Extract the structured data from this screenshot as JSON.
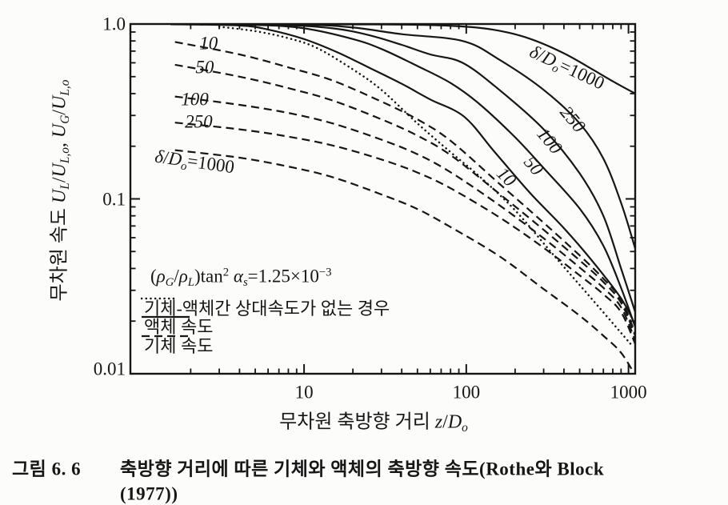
{
  "page": {
    "background": "#fcfcfa",
    "ink": "#161616"
  },
  "chart_data": {
    "type": "line",
    "x_scale": "log",
    "y_scale": "log",
    "xlim": [
      0.85,
      1100
    ],
    "ylim": [
      0.01,
      1.0
    ],
    "grid": false,
    "title": "",
    "xlabel": "무차원 축방향 거리 z/Do",
    "ylabel": "무차원 속도 UL/UL,o, UG/UL,o",
    "annotation": "(ρG/ρL)tan² αs=1.25×10⁻³",
    "x_ticks": [
      10,
      100,
      1000
    ],
    "x_tick_labels": [
      "10",
      "100",
      "1000"
    ],
    "x_minor_ticks": [
      2,
      3,
      4,
      5,
      6,
      7,
      8,
      9,
      20,
      30,
      40,
      50,
      60,
      70,
      80,
      90,
      200,
      300,
      400,
      500,
      600,
      700,
      800,
      900
    ],
    "y_ticks": [
      1.0,
      0.1,
      0.01
    ],
    "y_tick_labels": [
      "1.0",
      "0.1",
      "0.01"
    ],
    "y_minor_ticks": [
      0.9,
      0.8,
      0.7,
      0.6,
      0.5,
      0.4,
      0.3,
      0.2,
      0.09,
      0.08,
      0.07,
      0.06,
      0.05,
      0.04,
      0.03,
      0.02
    ],
    "legend_position": "lower-left-inside",
    "legend": [
      {
        "style": "dotted",
        "label": "기체-액체간 상대속도가 없는 경우"
      },
      {
        "style": "solid",
        "label": "액체 속도"
      },
      {
        "style": "dashed",
        "label": "기체 속도"
      }
    ],
    "series": [
      {
        "name": "liquid-delta-1000",
        "group": "액체 속도",
        "delta_over_Do": 1000,
        "style": "solid",
        "points": [
          [
            1.5,
            0.999
          ],
          [
            20,
            0.995
          ],
          [
            50,
            0.99
          ],
          [
            100,
            0.965
          ],
          [
            160,
            0.915
          ],
          [
            250,
            0.82
          ],
          [
            400,
            0.68
          ],
          [
            600,
            0.55
          ],
          [
            800,
            0.47
          ],
          [
            1100,
            0.4
          ]
        ]
      },
      {
        "name": "liquid-delta-250",
        "group": "액체 속도",
        "delta_over_Do": 250,
        "style": "solid",
        "points": [
          [
            1.5,
            0.998
          ],
          [
            10,
            0.99
          ],
          [
            20,
            0.955
          ],
          [
            40,
            0.875
          ],
          [
            95,
            0.8
          ],
          [
            160,
            0.625
          ],
          [
            300,
            0.42
          ],
          [
            500,
            0.27
          ],
          [
            700,
            0.17
          ],
          [
            900,
            0.095
          ],
          [
            1100,
            0.052
          ]
        ]
      },
      {
        "name": "liquid-delta-100",
        "group": "액체 속도",
        "delta_over_Do": 100,
        "style": "solid",
        "points": [
          [
            1.5,
            0.998
          ],
          [
            7,
            0.988
          ],
          [
            15,
            0.945
          ],
          [
            25,
            0.865
          ],
          [
            40,
            0.76
          ],
          [
            60,
            0.67
          ],
          [
            95,
            0.6
          ],
          [
            160,
            0.42
          ],
          [
            300,
            0.25
          ],
          [
            500,
            0.14
          ],
          [
            700,
            0.08
          ],
          [
            900,
            0.04
          ],
          [
            1100,
            0.0225
          ]
        ]
      },
      {
        "name": "liquid-delta-50",
        "group": "액체 속도",
        "delta_over_Do": 50,
        "style": "solid",
        "points": [
          [
            1.5,
            0.997
          ],
          [
            5,
            0.988
          ],
          [
            10,
            0.945
          ],
          [
            20,
            0.82
          ],
          [
            30,
            0.72
          ],
          [
            50,
            0.575
          ],
          [
            80,
            0.46
          ],
          [
            120,
            0.35
          ],
          [
            200,
            0.225
          ],
          [
            300,
            0.15
          ],
          [
            500,
            0.088
          ],
          [
            700,
            0.054
          ],
          [
            900,
            0.031
          ],
          [
            1100,
            0.0185
          ]
        ]
      },
      {
        "name": "liquid-delta-10",
        "group": "액체 속도",
        "delta_over_Do": 10,
        "style": "solid",
        "points": [
          [
            1.5,
            0.996
          ],
          [
            4,
            0.98
          ],
          [
            6,
            0.93
          ],
          [
            10,
            0.82
          ],
          [
            16,
            0.69
          ],
          [
            25,
            0.565
          ],
          [
            40,
            0.455
          ],
          [
            60,
            0.37
          ],
          [
            97,
            0.295
          ],
          [
            150,
            0.185
          ],
          [
            250,
            0.107
          ],
          [
            400,
            0.068
          ],
          [
            600,
            0.044
          ],
          [
            900,
            0.027
          ],
          [
            1100,
            0.019
          ]
        ]
      },
      {
        "name": "no-relative-velocity",
        "group": "기체-액체간 상대속도가 없는 경우",
        "style": "dotted",
        "points": [
          [
            3,
            0.965
          ],
          [
            5,
            0.91
          ],
          [
            8,
            0.83
          ],
          [
            12,
            0.73
          ],
          [
            20,
            0.55
          ],
          [
            30,
            0.42
          ],
          [
            50,
            0.27
          ],
          [
            80,
            0.185
          ],
          [
            120,
            0.135
          ],
          [
            200,
            0.086
          ],
          [
            350,
            0.047
          ],
          [
            600,
            0.0265
          ],
          [
            1050,
            0.0145
          ]
        ]
      },
      {
        "name": "gas-delta-10",
        "group": "기체 속도",
        "delta_over_Do": 10,
        "style": "dashed",
        "points": [
          [
            1.6,
            0.79
          ],
          [
            4,
            0.67
          ],
          [
            8,
            0.565
          ],
          [
            15,
            0.475
          ],
          [
            30,
            0.36
          ],
          [
            50,
            0.285
          ],
          [
            80,
            0.215
          ],
          [
            160,
            0.122
          ],
          [
            300,
            0.073
          ],
          [
            500,
            0.0475
          ],
          [
            700,
            0.035
          ],
          [
            900,
            0.0265
          ],
          [
            1100,
            0.017
          ]
        ]
      },
      {
        "name": "gas-delta-50",
        "group": "기체 속도",
        "delta_over_Do": 50,
        "style": "dashed",
        "points": [
          [
            1.6,
            0.585
          ],
          [
            4,
            0.5
          ],
          [
            8,
            0.43
          ],
          [
            15,
            0.365
          ],
          [
            30,
            0.285
          ],
          [
            50,
            0.23
          ],
          [
            80,
            0.178
          ],
          [
            160,
            0.107
          ],
          [
            300,
            0.0665
          ],
          [
            500,
            0.0445
          ],
          [
            700,
            0.0335
          ],
          [
            900,
            0.0255
          ],
          [
            1100,
            0.0165
          ]
        ]
      },
      {
        "name": "gas-delta-100",
        "group": "기체 속도",
        "delta_over_Do": 100,
        "style": "dashed",
        "points": [
          [
            1.6,
            0.385
          ],
          [
            4,
            0.345
          ],
          [
            8,
            0.31
          ],
          [
            15,
            0.27
          ],
          [
            30,
            0.218
          ],
          [
            50,
            0.18
          ],
          [
            80,
            0.142
          ],
          [
            160,
            0.092
          ],
          [
            300,
            0.0595
          ],
          [
            500,
            0.0405
          ],
          [
            700,
            0.031
          ],
          [
            900,
            0.024
          ],
          [
            1100,
            0.0155
          ]
        ]
      },
      {
        "name": "gas-delta-250",
        "group": "기체 속도",
        "delta_over_Do": 250,
        "style": "dashed",
        "points": [
          [
            1.6,
            0.273
          ],
          [
            4,
            0.25
          ],
          [
            8,
            0.227
          ],
          [
            15,
            0.202
          ],
          [
            30,
            0.168
          ],
          [
            50,
            0.1415
          ],
          [
            80,
            0.115
          ],
          [
            160,
            0.0785
          ],
          [
            300,
            0.0525
          ],
          [
            500,
            0.0365
          ],
          [
            700,
            0.0285
          ],
          [
            900,
            0.0225
          ],
          [
            1100,
            0.0148
          ]
        ]
      },
      {
        "name": "gas-delta-1000",
        "group": "기체 속도",
        "delta_over_Do": 1000,
        "style": "dashed",
        "points": [
          [
            1.6,
            0.19
          ],
          [
            4,
            0.172
          ],
          [
            8,
            0.153
          ],
          [
            15,
            0.133
          ],
          [
            30,
            0.106
          ],
          [
            50,
            0.0875
          ],
          [
            80,
            0.069
          ],
          [
            160,
            0.047
          ],
          [
            300,
            0.0305
          ],
          [
            500,
            0.0215
          ],
          [
            700,
            0.0165
          ],
          [
            900,
            0.0132
          ],
          [
            1100,
            0.0098
          ]
        ]
      }
    ],
    "curve_labels": [
      {
        "text": "10",
        "z": 2.58,
        "u": 0.777,
        "rot": 0,
        "family": "gas"
      },
      {
        "text": "50",
        "z": 2.44,
        "u": 0.566,
        "rot": 0,
        "family": "gas"
      },
      {
        "text": "100",
        "z": 2.12,
        "u": 0.372,
        "rot": 0,
        "family": "gas"
      },
      {
        "text": "250",
        "z": 2.24,
        "u": 0.277,
        "rot": 0,
        "family": "gas"
      },
      {
        "text": "δ/Do=1000",
        "rich": "delta1000",
        "z": 2.12,
        "u": 0.16,
        "rot": 8,
        "family": "gas"
      },
      {
        "text": "δ/Do=1000",
        "rich": "delta1000",
        "z": 413,
        "u": 0.553,
        "rot": 25,
        "family": "liquid"
      },
      {
        "text": "250",
        "z": 455,
        "u": 0.285,
        "rot": 50,
        "family": "liquid"
      },
      {
        "text": "100",
        "z": 326,
        "u": 0.215,
        "rot": 50,
        "family": "liquid"
      },
      {
        "text": "50",
        "z": 260,
        "u": 0.155,
        "rot": 50,
        "family": "liquid"
      },
      {
        "text": "10",
        "z": 177,
        "u": 0.134,
        "rot": 45,
        "family": "liquid"
      }
    ]
  },
  "rich_text": {
    "ylabel": [
      [
        "무차원 속도 ",
        "n"
      ],
      [
        "U",
        "i"
      ],
      [
        "L",
        "s"
      ],
      [
        "/",
        "n"
      ],
      [
        "U",
        "i"
      ],
      [
        "L,o",
        "s"
      ],
      [
        ",  ",
        "n"
      ],
      [
        "U",
        "i"
      ],
      [
        "G",
        "s"
      ],
      [
        "/",
        "n"
      ],
      [
        "U",
        "i"
      ],
      [
        "L,o",
        "s"
      ]
    ],
    "xlabel": [
      [
        "무차원 축방향 거리 ",
        "n"
      ],
      [
        "z",
        "i"
      ],
      [
        "/",
        "n"
      ],
      [
        "D",
        "i"
      ],
      [
        "o",
        "s"
      ]
    ],
    "annotation": [
      [
        "(",
        "n"
      ],
      [
        "ρ",
        "i"
      ],
      [
        "G",
        "s"
      ],
      [
        "/",
        "n"
      ],
      [
        "ρ",
        "i"
      ],
      [
        "L",
        "s"
      ],
      [
        ")tan",
        "n"
      ],
      [
        "2",
        "p"
      ],
      [
        " ",
        "n"
      ],
      [
        "α",
        "i"
      ],
      [
        "s",
        "s"
      ],
      [
        "=1.25×10",
        "n"
      ],
      [
        "−3",
        "p"
      ]
    ],
    "delta1000": [
      [
        "δ",
        "i"
      ],
      [
        "/",
        "n"
      ],
      [
        "D",
        "i"
      ],
      [
        "o",
        "s"
      ],
      [
        "=1000",
        "n"
      ]
    ]
  },
  "caption": {
    "fig_label": "그림 6. 6",
    "line1": "축방향 거리에 따른 기체와 액체의 축방향 속도(Rothe와 Block",
    "line2": "(1977))"
  }
}
